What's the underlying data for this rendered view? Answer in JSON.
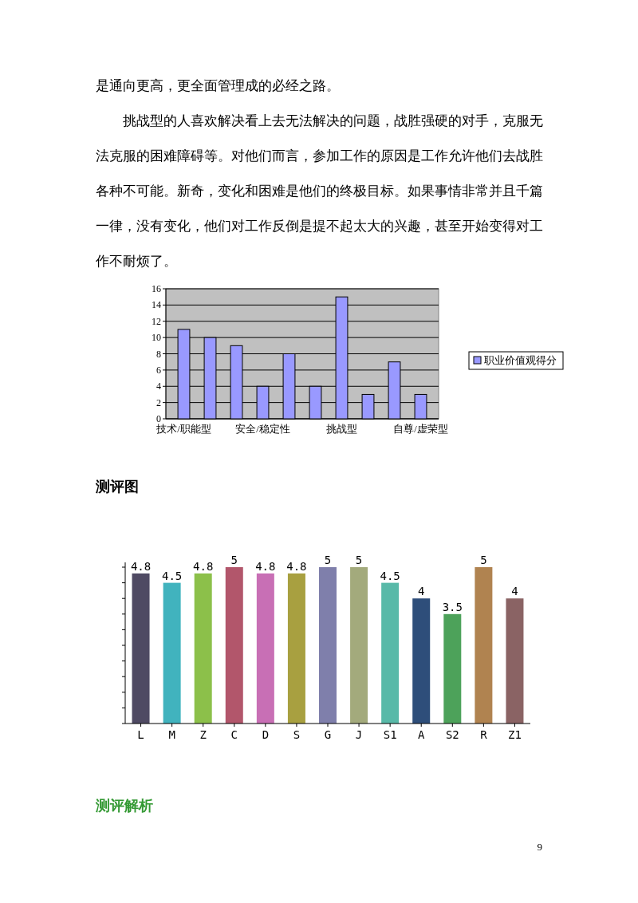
{
  "chart_data": [
    {
      "type": "bar",
      "categories": [
        "技术/职能型",
        null,
        null,
        "安全/稳定性",
        null,
        null,
        "挑战型",
        null,
        null,
        "自尊/虚荣型"
      ],
      "series": [
        {
          "name": "职业价值观得分",
          "color": "#9999ff",
          "values": [
            11,
            10,
            9,
            4,
            8,
            4,
            15,
            3,
            7,
            3
          ]
        }
      ],
      "ylim": [
        0,
        16
      ],
      "yticks": [
        0,
        2,
        4,
        6,
        8,
        10,
        12,
        14,
        16
      ],
      "grid": "y",
      "legend": "right",
      "annotations": [
        "是通向更高，更全面管理成的必经之路。",
        "挑战型的人喜欢解决看上去无法解决的问题，战胜强硬的对手，克服无法克服的困难障碍等。对他们而言，参加工作的原因是工作允许他们去战胜各种不可能。新奇，变化和困难是他们的终极目标。如果事情非常并且千篇一律，没有变化，他们对工作反倒是提不起太大的兴趣，甚至开始变得对工作不耐烦了。"
      ]
    },
    {
      "type": "bar",
      "title": "测评图",
      "categories": [
        "L",
        "M",
        "Z",
        "C",
        "D",
        "S",
        "G",
        "J",
        "S1",
        "A",
        "S2",
        "R",
        "Z1"
      ],
      "values": [
        4.8,
        4.5,
        4.8,
        5,
        4.8,
        4.8,
        5,
        5,
        4.5,
        4,
        3.5,
        5,
        4
      ],
      "colors": [
        "#4f4a63",
        "#41b3be",
        "#8cc04a",
        "#b2566b",
        "#c86fb5",
        "#a8a040",
        "#7f7fab",
        "#a3aa7c",
        "#58b9a8",
        "#2e4e7a",
        "#4da25a",
        "#b08350",
        "#8a6364"
      ],
      "ylim": [
        0,
        5
      ],
      "yticks": [
        {
          "value": 0,
          "label": null
        },
        {
          "value": 0.5,
          "label": null
        },
        {
          "value": 1,
          "label": null
        },
        {
          "value": 1.5,
          "label": null
        },
        {
          "value": 2,
          "label": null
        },
        {
          "value": 2.5,
          "label": null
        },
        {
          "value": 3,
          "label": null
        },
        {
          "value": 3.5,
          "label": null
        },
        {
          "value": 4,
          "label": null
        },
        {
          "value": 4.5,
          "label": null
        },
        {
          "value": 5,
          "label": null
        }
      ],
      "data_labels": true,
      "grid": false,
      "annotations": [
        "测评解析",
        "9"
      ]
    }
  ]
}
